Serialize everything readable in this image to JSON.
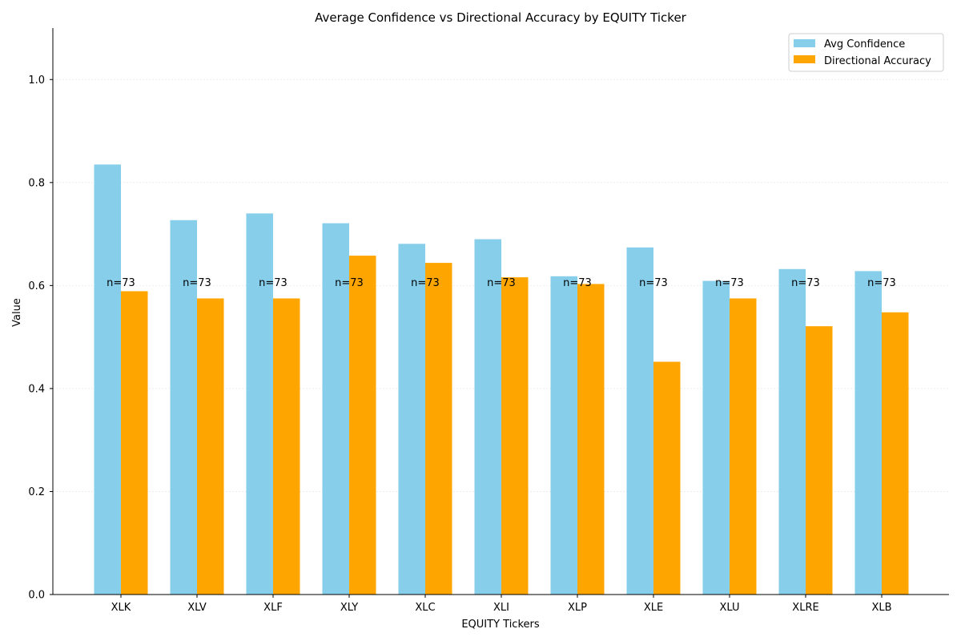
{
  "chart_data": {
    "type": "bar",
    "title": "Average Confidence vs Directional Accuracy by EQUITY Ticker",
    "xlabel": "EQUITY Tickers",
    "ylabel": "Value",
    "ylim": [
      0,
      1.1
    ],
    "yticks": [
      "0.0",
      "0.2",
      "0.4",
      "0.6",
      "0.8",
      "1.0"
    ],
    "categories": [
      "XLK",
      "XLV",
      "XLF",
      "XLY",
      "XLC",
      "XLI",
      "XLP",
      "XLE",
      "XLU",
      "XLRE",
      "XLB"
    ],
    "series": [
      {
        "name": "Avg Confidence",
        "color": "#87CEEB",
        "values": [
          0.835,
          0.727,
          0.74,
          0.721,
          0.681,
          0.69,
          0.618,
          0.674,
          0.609,
          0.632,
          0.628
        ]
      },
      {
        "name": "Directional Accuracy",
        "color": "#FFA500",
        "values": [
          0.589,
          0.575,
          0.575,
          0.658,
          0.644,
          0.616,
          0.603,
          0.452,
          0.575,
          0.521,
          0.548
        ]
      }
    ],
    "annotations": [
      "n=73",
      "n=73",
      "n=73",
      "n=73",
      "n=73",
      "n=73",
      "n=73",
      "n=73",
      "n=73",
      "n=73",
      "n=73"
    ],
    "annotation_value": 0.6,
    "grid": "horizontal",
    "legend_position": "top-right"
  }
}
